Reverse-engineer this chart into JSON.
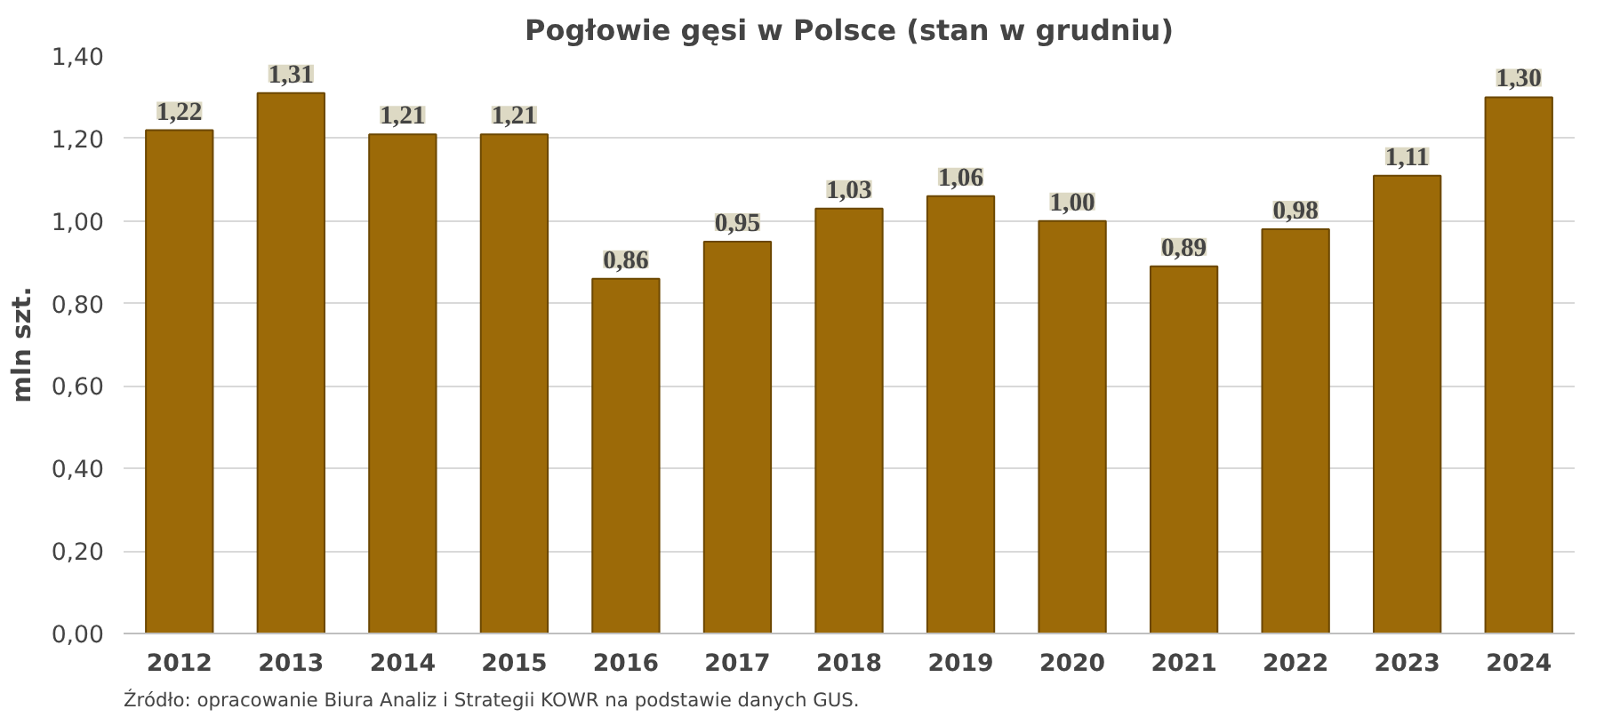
{
  "chart_data": {
    "type": "bar",
    "title": "Pogłowie gęsi w Polsce (stan w grudniu)",
    "ylabel": "mln szt.",
    "categories": [
      "2012",
      "2013",
      "2014",
      "2015",
      "2016",
      "2017",
      "2018",
      "2019",
      "2020",
      "2021",
      "2022",
      "2023",
      "2024"
    ],
    "values": [
      1.22,
      1.31,
      1.21,
      1.21,
      0.86,
      0.95,
      1.03,
      1.06,
      1.0,
      0.89,
      0.98,
      1.11,
      1.3
    ],
    "value_labels": [
      "1,22",
      "1,31",
      "1,21",
      "1,21",
      "0,86",
      "0,95",
      "1,03",
      "1,06",
      "1,00",
      "0,89",
      "0,98",
      "1,11",
      "1,30"
    ],
    "color": "#9c6a08",
    "ylim": [
      0,
      1.4
    ],
    "yticks": [
      {
        "value": 0,
        "label": "0,00"
      },
      {
        "value": 0.2,
        "label": "0,20"
      },
      {
        "value": 0.4,
        "label": "0,40"
      },
      {
        "value": 0.6,
        "label": "0,60"
      },
      {
        "value": 0.8,
        "label": "0,80"
      },
      {
        "value": 1.0,
        "label": "1,00"
      },
      {
        "value": 1.2,
        "label": "1,20"
      },
      {
        "value": 1.4,
        "label": "1,40"
      }
    ],
    "grid": "y",
    "annotations": [
      "Źródło: opracowanie Biura Analiz i Strategii KOWR na podstawie danych GUS."
    ]
  }
}
